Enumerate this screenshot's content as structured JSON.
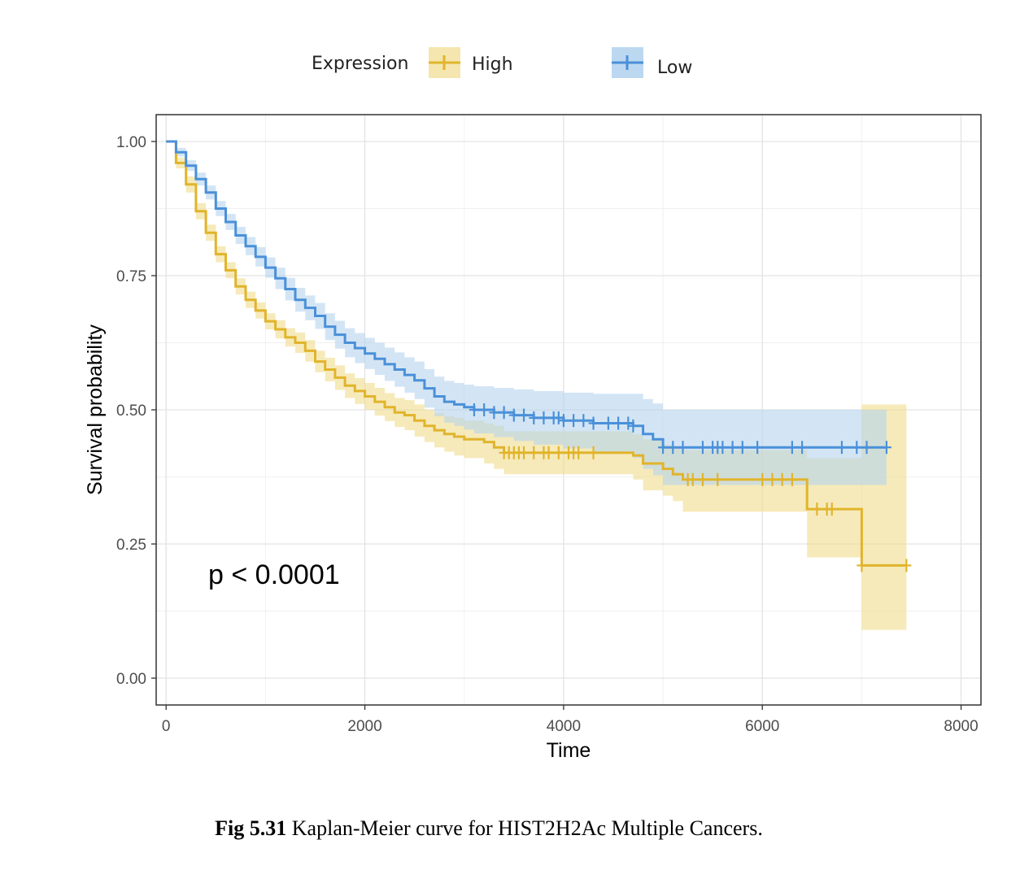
{
  "chart_data": {
    "type": "line",
    "subtype": "kaplan-meier",
    "xlabel": "Time",
    "ylabel": "Survival probability",
    "xlim": [
      -100,
      8200
    ],
    "ylim": [
      -0.05,
      1.05
    ],
    "x_ticks": [
      0,
      2000,
      4000,
      6000,
      8000
    ],
    "y_ticks": [
      0.0,
      0.25,
      0.5,
      0.75,
      1.0
    ],
    "y_tick_labels": [
      "0.00",
      "0.25",
      "0.50",
      "0.75",
      "1.00"
    ],
    "grid": true,
    "legend": {
      "title": "Expression",
      "placement": "top"
    },
    "annotation": "p < 0.0001",
    "series": [
      {
        "name": "High",
        "color": "#E1B42B",
        "band_color": "#F0DC8C",
        "points": [
          [
            0,
            1.0
          ],
          [
            100,
            0.96
          ],
          [
            200,
            0.92
          ],
          [
            300,
            0.87
          ],
          [
            400,
            0.83
          ],
          [
            500,
            0.79
          ],
          [
            600,
            0.76
          ],
          [
            700,
            0.73
          ],
          [
            800,
            0.705
          ],
          [
            900,
            0.685
          ],
          [
            1000,
            0.665
          ],
          [
            1100,
            0.65
          ],
          [
            1200,
            0.635
          ],
          [
            1300,
            0.625
          ],
          [
            1400,
            0.61
          ],
          [
            1500,
            0.59
          ],
          [
            1600,
            0.575
          ],
          [
            1700,
            0.56
          ],
          [
            1800,
            0.545
          ],
          [
            1900,
            0.535
          ],
          [
            2000,
            0.525
          ],
          [
            2100,
            0.515
          ],
          [
            2200,
            0.505
          ],
          [
            2300,
            0.495
          ],
          [
            2400,
            0.49
          ],
          [
            2500,
            0.48
          ],
          [
            2600,
            0.47
          ],
          [
            2700,
            0.462
          ],
          [
            2800,
            0.455
          ],
          [
            2900,
            0.45
          ],
          [
            3000,
            0.445
          ],
          [
            3200,
            0.44
          ],
          [
            3300,
            0.43
          ],
          [
            3400,
            0.42
          ],
          [
            3600,
            0.42
          ],
          [
            4000,
            0.42
          ],
          [
            4700,
            0.415
          ],
          [
            4800,
            0.4
          ],
          [
            5000,
            0.39
          ],
          [
            5100,
            0.38
          ],
          [
            5200,
            0.37
          ],
          [
            6400,
            0.37
          ],
          [
            6450,
            0.315
          ],
          [
            6950,
            0.315
          ],
          [
            7000,
            0.21
          ],
          [
            7450,
            0.21
          ]
        ],
        "lower": [
          [
            0,
            1.0
          ],
          [
            100,
            0.95
          ],
          [
            200,
            0.905
          ],
          [
            300,
            0.855
          ],
          [
            400,
            0.815
          ],
          [
            500,
            0.775
          ],
          [
            600,
            0.745
          ],
          [
            700,
            0.715
          ],
          [
            800,
            0.69
          ],
          [
            900,
            0.67
          ],
          [
            1000,
            0.65
          ],
          [
            1100,
            0.633
          ],
          [
            1200,
            0.618
          ],
          [
            1300,
            0.606
          ],
          [
            1400,
            0.59
          ],
          [
            1500,
            0.57
          ],
          [
            1600,
            0.553
          ],
          [
            1700,
            0.537
          ],
          [
            1800,
            0.522
          ],
          [
            1900,
            0.511
          ],
          [
            2000,
            0.5
          ],
          [
            2100,
            0.489
          ],
          [
            2200,
            0.479
          ],
          [
            2300,
            0.468
          ],
          [
            2400,
            0.462
          ],
          [
            2500,
            0.45
          ],
          [
            2600,
            0.44
          ],
          [
            2700,
            0.43
          ],
          [
            2800,
            0.422
          ],
          [
            2900,
            0.415
          ],
          [
            3000,
            0.41
          ],
          [
            3200,
            0.4
          ],
          [
            3300,
            0.39
          ],
          [
            3400,
            0.38
          ],
          [
            4700,
            0.37
          ],
          [
            4800,
            0.35
          ],
          [
            5000,
            0.34
          ],
          [
            5100,
            0.33
          ],
          [
            5200,
            0.31
          ],
          [
            6400,
            0.31
          ],
          [
            6450,
            0.225
          ],
          [
            6950,
            0.225
          ],
          [
            7000,
            0.09
          ],
          [
            7450,
            0.09
          ]
        ],
        "upper": [
          [
            0,
            1.0
          ],
          [
            100,
            0.97
          ],
          [
            200,
            0.935
          ],
          [
            300,
            0.885
          ],
          [
            400,
            0.845
          ],
          [
            500,
            0.805
          ],
          [
            600,
            0.775
          ],
          [
            700,
            0.745
          ],
          [
            800,
            0.72
          ],
          [
            900,
            0.7
          ],
          [
            1000,
            0.68
          ],
          [
            1100,
            0.667
          ],
          [
            1200,
            0.652
          ],
          [
            1300,
            0.644
          ],
          [
            1400,
            0.63
          ],
          [
            1500,
            0.61
          ],
          [
            1600,
            0.597
          ],
          [
            1700,
            0.583
          ],
          [
            1800,
            0.568
          ],
          [
            1900,
            0.559
          ],
          [
            2000,
            0.55
          ],
          [
            2100,
            0.541
          ],
          [
            2200,
            0.531
          ],
          [
            2300,
            0.522
          ],
          [
            2400,
            0.518
          ],
          [
            2500,
            0.51
          ],
          [
            2600,
            0.5
          ],
          [
            2700,
            0.494
          ],
          [
            2800,
            0.488
          ],
          [
            2900,
            0.485
          ],
          [
            3000,
            0.48
          ],
          [
            3200,
            0.475
          ],
          [
            3300,
            0.47
          ],
          [
            3400,
            0.46
          ],
          [
            4700,
            0.455
          ],
          [
            4800,
            0.445
          ],
          [
            5000,
            0.435
          ],
          [
            5100,
            0.43
          ],
          [
            5200,
            0.425
          ],
          [
            6400,
            0.425
          ],
          [
            6450,
            0.41
          ],
          [
            6950,
            0.41
          ],
          [
            7000,
            0.51
          ],
          [
            7450,
            0.51
          ]
        ],
        "censor_x": [
          3400,
          3450,
          3500,
          3550,
          3600,
          3700,
          3800,
          3850,
          3950,
          4050,
          4100,
          4150,
          4300,
          5250,
          5300,
          5400,
          5550,
          6000,
          6100,
          6200,
          6300,
          6550,
          6650,
          6700,
          7000,
          7450
        ]
      },
      {
        "name": "Low",
        "color": "#4A90D9",
        "band_color": "#B5D4EF",
        "points": [
          [
            0,
            1.0
          ],
          [
            100,
            0.98
          ],
          [
            200,
            0.955
          ],
          [
            300,
            0.93
          ],
          [
            400,
            0.905
          ],
          [
            500,
            0.875
          ],
          [
            600,
            0.85
          ],
          [
            700,
            0.825
          ],
          [
            800,
            0.805
          ],
          [
            900,
            0.785
          ],
          [
            1000,
            0.765
          ],
          [
            1100,
            0.745
          ],
          [
            1200,
            0.725
          ],
          [
            1300,
            0.705
          ],
          [
            1400,
            0.69
          ],
          [
            1500,
            0.675
          ],
          [
            1600,
            0.655
          ],
          [
            1700,
            0.64
          ],
          [
            1800,
            0.625
          ],
          [
            1900,
            0.615
          ],
          [
            2000,
            0.605
          ],
          [
            2100,
            0.595
          ],
          [
            2200,
            0.585
          ],
          [
            2300,
            0.575
          ],
          [
            2400,
            0.565
          ],
          [
            2500,
            0.555
          ],
          [
            2600,
            0.54
          ],
          [
            2700,
            0.525
          ],
          [
            2800,
            0.515
          ],
          [
            2900,
            0.51
          ],
          [
            3000,
            0.505
          ],
          [
            3100,
            0.5
          ],
          [
            3300,
            0.495
          ],
          [
            3500,
            0.49
          ],
          [
            3700,
            0.485
          ],
          [
            4000,
            0.48
          ],
          [
            4300,
            0.475
          ],
          [
            4700,
            0.47
          ],
          [
            4800,
            0.455
          ],
          [
            4900,
            0.445
          ],
          [
            5000,
            0.43
          ],
          [
            7250,
            0.43
          ]
        ],
        "lower": [
          [
            0,
            1.0
          ],
          [
            100,
            0.972
          ],
          [
            200,
            0.945
          ],
          [
            300,
            0.918
          ],
          [
            400,
            0.892
          ],
          [
            500,
            0.861
          ],
          [
            600,
            0.835
          ],
          [
            700,
            0.809
          ],
          [
            800,
            0.788
          ],
          [
            900,
            0.767
          ],
          [
            1000,
            0.746
          ],
          [
            1100,
            0.725
          ],
          [
            1200,
            0.704
          ],
          [
            1300,
            0.683
          ],
          [
            1400,
            0.667
          ],
          [
            1500,
            0.651
          ],
          [
            1600,
            0.63
          ],
          [
            1700,
            0.614
          ],
          [
            1800,
            0.598
          ],
          [
            1900,
            0.587
          ],
          [
            2000,
            0.576
          ],
          [
            2100,
            0.565
          ],
          [
            2200,
            0.554
          ],
          [
            2300,
            0.543
          ],
          [
            2400,
            0.532
          ],
          [
            2500,
            0.52
          ],
          [
            2600,
            0.504
          ],
          [
            2700,
            0.488
          ],
          [
            2800,
            0.476
          ],
          [
            2900,
            0.47
          ],
          [
            3000,
            0.463
          ],
          [
            3100,
            0.456
          ],
          [
            3300,
            0.449
          ],
          [
            3500,
            0.442
          ],
          [
            3700,
            0.435
          ],
          [
            4000,
            0.428
          ],
          [
            4300,
            0.42
          ],
          [
            4700,
            0.41
          ],
          [
            4800,
            0.39
          ],
          [
            4900,
            0.378
          ],
          [
            5000,
            0.36
          ],
          [
            7250,
            0.36
          ]
        ],
        "upper": [
          [
            0,
            1.0
          ],
          [
            100,
            0.988
          ],
          [
            200,
            0.965
          ],
          [
            300,
            0.942
          ],
          [
            400,
            0.918
          ],
          [
            500,
            0.889
          ],
          [
            600,
            0.865
          ],
          [
            700,
            0.841
          ],
          [
            800,
            0.822
          ],
          [
            900,
            0.803
          ],
          [
            1000,
            0.784
          ],
          [
            1100,
            0.765
          ],
          [
            1200,
            0.746
          ],
          [
            1300,
            0.727
          ],
          [
            1400,
            0.713
          ],
          [
            1500,
            0.699
          ],
          [
            1600,
            0.68
          ],
          [
            1700,
            0.666
          ],
          [
            1800,
            0.652
          ],
          [
            1900,
            0.643
          ],
          [
            2000,
            0.634
          ],
          [
            2100,
            0.625
          ],
          [
            2200,
            0.616
          ],
          [
            2300,
            0.607
          ],
          [
            2400,
            0.598
          ],
          [
            2500,
            0.59
          ],
          [
            2600,
            0.576
          ],
          [
            2700,
            0.562
          ],
          [
            2800,
            0.554
          ],
          [
            2900,
            0.55
          ],
          [
            3000,
            0.547
          ],
          [
            3100,
            0.544
          ],
          [
            3300,
            0.541
          ],
          [
            3500,
            0.538
          ],
          [
            3700,
            0.535
          ],
          [
            4000,
            0.532
          ],
          [
            4300,
            0.53
          ],
          [
            4700,
            0.53
          ],
          [
            4800,
            0.52
          ],
          [
            4900,
            0.512
          ],
          [
            5000,
            0.5
          ],
          [
            7250,
            0.5
          ]
        ],
        "censor_x": [
          3100,
          3200,
          3300,
          3400,
          3500,
          3600,
          3700,
          3800,
          3900,
          3950,
          4000,
          4100,
          4200,
          4300,
          4450,
          4550,
          4650,
          4700,
          5000,
          5100,
          5200,
          5400,
          5500,
          5550,
          5600,
          5700,
          5800,
          5950,
          6300,
          6400,
          6800,
          6950,
          7050,
          7250
        ]
      }
    ]
  },
  "caption": {
    "label": "Fig 5.31",
    "text": " Kaplan-Meier curve for HIST2H2Ac Multiple Cancers."
  }
}
